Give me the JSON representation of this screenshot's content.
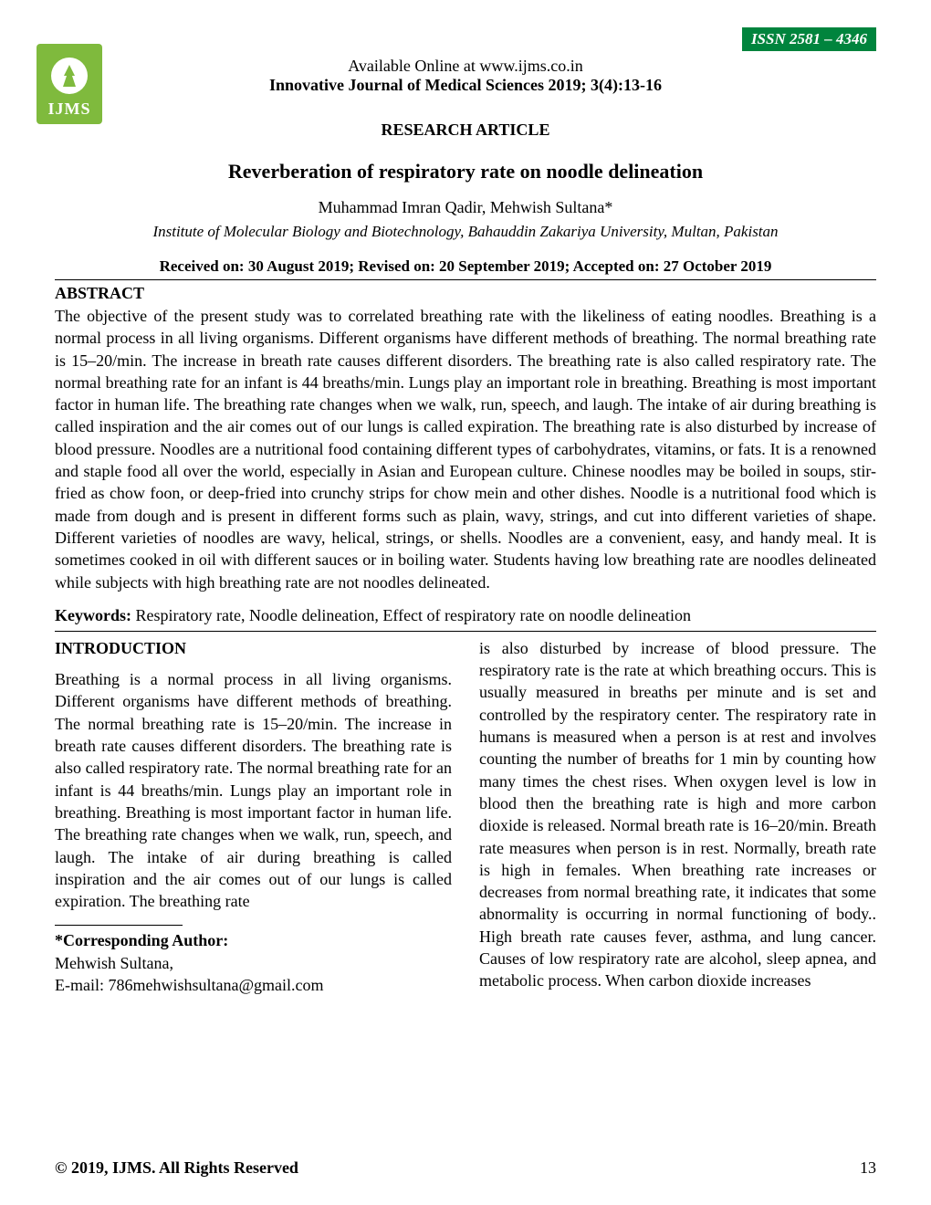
{
  "issn": "ISSN 2581 – 4346",
  "logo_text": "IJMS",
  "header": {
    "available_online": "Available Online at www.ijms.co.in",
    "journal_info": "Innovative Journal of Medical Sciences 2019; 3(4):13-16"
  },
  "article_type": "RESEARCH ARTICLE",
  "title": "Reverberation of respiratory rate on noodle delineation",
  "authors": "Muhammad Imran Qadir, Mehwish Sultana*",
  "affiliation": "Institute of Molecular Biology and Biotechnology, Bahauddin Zakariya University, Multan, Pakistan",
  "dates": "Received on: 30 August 2019; Revised on: 20 September 2019; Accepted on: 27 October 2019",
  "abstract": {
    "heading": "ABSTRACT",
    "text": "The objective of the present study was to correlated breathing rate with the likeliness of eating noodles. Breathing is a normal process in all living organisms. Different organisms have different methods of breathing. The normal breathing rate is 15–20/min. The increase in breath rate causes different disorders. The breathing rate is also called respiratory rate. The normal breathing rate for an infant is 44 breaths/min. Lungs play an important role in breathing. Breathing is most important factor in human life. The breathing rate changes when we walk, run, speech, and laugh. The intake of air during breathing is called inspiration and the air comes out of our lungs is called expiration. The breathing rate is also disturbed by increase of blood pressure. Noodles are a nutritional food containing different types of carbohydrates, vitamins, or fats. It is a renowned and staple food all over the world, especially in Asian and European culture. Chinese noodles may be boiled in soups, stir-fried as chow foon, or deep-fried into crunchy strips for chow mein and other dishes. Noodle is a nutritional food which is made from dough and is present in different forms such as plain, wavy, strings, and cut into different varieties of shape. Different varieties of noodles are wavy, helical, strings, or shells. Noodles are a convenient, easy, and handy meal. It is sometimes cooked in oil with different sauces or in boiling water. Students having low breathing rate are noodles delineated while subjects with high breathing rate are not noodles delineated."
  },
  "keywords": {
    "label": "Keywords:",
    "text": " Respiratory rate, Noodle delineation, Effect of respiratory rate on noodle delineation"
  },
  "introduction": {
    "heading": "INTRODUCTION",
    "para1": "Breathing is a normal process in all living organisms. Different organisms have different methods of breathing. The normal breathing rate is 15–20/min. The increase in breath rate causes different disorders. The breathing rate is also called respiratory rate. The normal breathing rate for an infant is 44 breaths/min. Lungs play an important role in breathing. Breathing is most important factor in human life. The breathing rate changes when we walk, run, speech, and laugh. The intake of air during breathing is called inspiration and the air comes out of our lungs is called expiration. The breathing rate",
    "para2": "is also disturbed by increase of blood pressure. The respiratory rate is the rate at which breathing occurs. This is usually measured in breaths per minute and is set and controlled by the respiratory center. The respiratory rate in humans is measured when a person is at rest and involves counting the number of breaths for 1 min by counting how many times the chest rises. When oxygen level is low in blood then the breathing rate is high and more carbon dioxide is released. Normal breath rate is 16–20/min. Breath rate measures when person is in rest. Normally, breath rate is high in females. When breathing rate increases or decreases from normal breathing rate, it indicates that some abnormality is occurring in normal functioning of body.. High breath rate causes fever, asthma, and lung cancer. Causes of low respiratory rate are alcohol, sleep apnea, and metabolic process. When carbon dioxide increases"
  },
  "corresponding": {
    "heading": "*Corresponding Author:",
    "name": "Mehwish Sultana,",
    "email": "E-mail: 786mehwishsultana@gmail.com"
  },
  "footer": {
    "copyright": "© 2019, IJMS. All Rights Reserved",
    "page_number": "13"
  },
  "colors": {
    "issn_bg": "#00843d",
    "issn_text": "#ffffff",
    "logo_bg": "#7fba3d",
    "body_text": "#000000",
    "background": "#ffffff"
  },
  "typography": {
    "body_fontsize": 18,
    "title_fontsize": 22,
    "font_family": "Times New Roman"
  }
}
